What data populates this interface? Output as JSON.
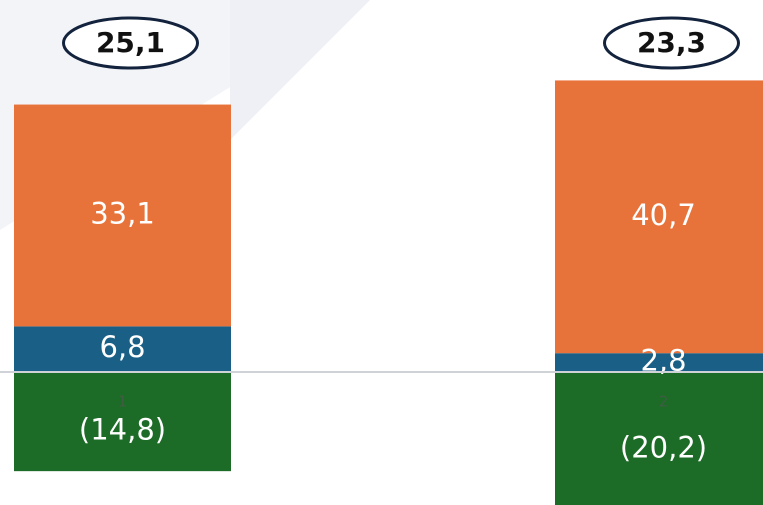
{
  "chart_data": {
    "type": "stacked_bar",
    "categories": [
      "1",
      "2"
    ],
    "series": [
      {
        "color": "#1c6b27",
        "values": [
          -14.8,
          -20.2
        ],
        "value_labels": [
          "(14,8)",
          "(20,2)"
        ]
      },
      {
        "color": "#1a5f85",
        "values": [
          6.8,
          2.8
        ],
        "value_labels": [
          "6,8",
          "2,8"
        ]
      },
      {
        "color": "#e8733a",
        "values": [
          33.1,
          40.7
        ],
        "value_labels": [
          "33,1",
          "40,7"
        ]
      }
    ],
    "totals": [
      25.1,
      23.3
    ],
    "total_labels": [
      "25,1",
      "23,3"
    ],
    "ylim": [
      -19.85,
      55.5
    ]
  }
}
